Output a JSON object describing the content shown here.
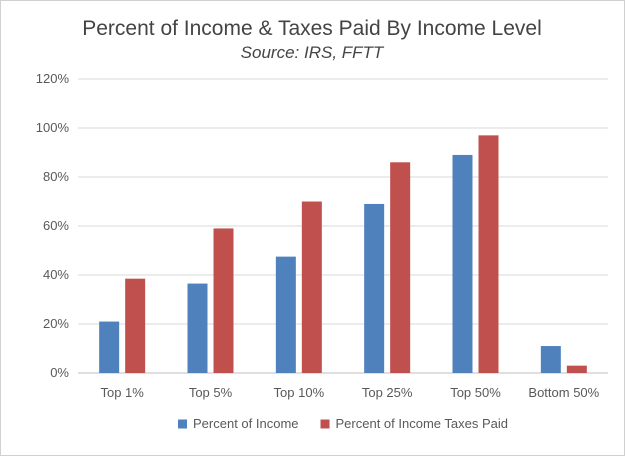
{
  "chart_data": {
    "type": "bar",
    "title": "Percent of Income & Taxes Paid By Income Level",
    "subtitle": "Source: IRS, FFTT",
    "categories": [
      "Top 1%",
      "Top 5%",
      "Top 10%",
      "Top 25%",
      "Top 50%",
      "Bottom 50%"
    ],
    "series": [
      {
        "name": "Percent of Income",
        "color": "#4f81bd",
        "values": [
          21,
          36.5,
          47.5,
          69,
          89,
          11
        ]
      },
      {
        "name": "Percent of Income Taxes Paid",
        "color": "#c0504d",
        "values": [
          38.5,
          59,
          70,
          86,
          97,
          3
        ]
      }
    ],
    "ylim": [
      0,
      120
    ],
    "yticks": [
      0,
      20,
      40,
      60,
      80,
      100,
      120
    ],
    "ytick_labels": [
      "0%",
      "20%",
      "40%",
      "60%",
      "80%",
      "100%",
      "120%"
    ],
    "grid": true,
    "legend_position": "bottom"
  }
}
